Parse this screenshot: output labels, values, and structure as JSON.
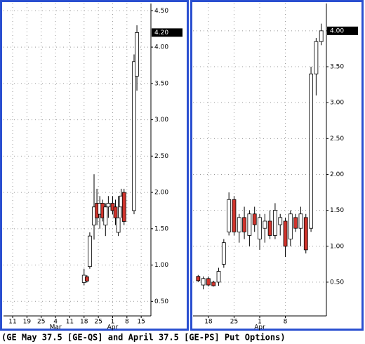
{
  "chart_data": [
    {
      "type": "candlestick",
      "x": [
        25,
        26,
        27,
        28.5,
        29.5,
        30.5,
        31.5,
        32.5,
        33.5,
        35,
        36,
        37,
        38,
        39,
        42.5,
        43.5
      ],
      "open": [
        0.76,
        0.84,
        0.98,
        1.55,
        1.85,
        1.7,
        1.85,
        1.55,
        1.8,
        1.85,
        1.8,
        1.45,
        1.8,
        2.0,
        1.75,
        3.6
      ],
      "high": [
        0.95,
        0.86,
        1.45,
        2.25,
        2.05,
        1.95,
        1.9,
        1.85,
        1.95,
        1.95,
        1.9,
        1.95,
        2.05,
        2.05,
        3.9,
        4.3
      ],
      "low": [
        0.72,
        0.76,
        0.95,
        1.35,
        1.55,
        1.5,
        1.6,
        1.4,
        1.65,
        1.7,
        1.55,
        1.4,
        1.65,
        1.55,
        1.7,
        3.4
      ],
      "close": [
        0.86,
        0.78,
        1.4,
        1.8,
        1.65,
        1.85,
        1.65,
        1.8,
        1.85,
        1.75,
        1.65,
        1.65,
        1.95,
        1.6,
        3.8,
        4.2
      ],
      "up_color": "#ffffff",
      "down_color": "#d0342c",
      "xlim": [
        -3.2,
        48.4
      ],
      "xticks": [
        {
          "value": 0,
          "label": "11"
        },
        {
          "value": 5,
          "label": "19"
        },
        {
          "value": 10,
          "label": "25"
        },
        {
          "value": 15,
          "label": "4"
        },
        {
          "value": 20,
          "label": "11"
        },
        {
          "value": 25,
          "label": "18"
        },
        {
          "value": 30,
          "label": "25"
        },
        {
          "value": 35,
          "label": "1"
        },
        {
          "value": 40,
          "label": "8"
        },
        {
          "value": 45,
          "label": "15"
        }
      ],
      "month_labels": [
        {
          "value": 15,
          "label": "Mar"
        },
        {
          "value": 35,
          "label": "Apr"
        }
      ],
      "ylim": [
        0.3,
        4.6
      ],
      "yticks": [
        {
          "value": 0.5,
          "label": "0.50"
        },
        {
          "value": 1,
          "label": "1.00"
        },
        {
          "value": 1.5,
          "label": "1.50"
        },
        {
          "value": 2,
          "label": "2.00"
        },
        {
          "value": 2.5,
          "label": "2.50"
        },
        {
          "value": 3,
          "label": "3.00"
        },
        {
          "value": 3.5,
          "label": "3.50"
        },
        {
          "value": 4,
          "label": "4.00"
        },
        {
          "value": 4.5,
          "label": "4.50"
        }
      ],
      "last_price": {
        "value": 4.2,
        "label": "4.20"
      },
      "grid": true
    },
    {
      "type": "candlestick",
      "x": [
        -2,
        -1,
        0,
        1,
        2,
        3,
        4,
        5,
        6,
        7,
        8,
        9,
        10,
        11,
        12,
        13,
        14,
        15,
        16,
        17,
        18,
        19,
        20,
        21,
        22
      ],
      "open": [
        0.58,
        0.46,
        0.55,
        0.5,
        0.5,
        0.75,
        1.2,
        1.65,
        1.2,
        1.4,
        1.15,
        1.45,
        1.1,
        1.25,
        1.35,
        1.15,
        1.3,
        1.35,
        1.1,
        1.4,
        1.25,
        1.4,
        1.25,
        3.4,
        3.85
      ],
      "high": [
        0.6,
        0.58,
        0.58,
        0.52,
        0.7,
        1.1,
        1.75,
        1.7,
        1.45,
        1.55,
        1.5,
        1.55,
        1.45,
        1.45,
        1.5,
        1.6,
        1.45,
        1.4,
        1.5,
        1.45,
        1.55,
        1.45,
        3.5,
        3.9,
        4.1
      ],
      "low": [
        0.5,
        0.4,
        0.44,
        0.44,
        0.45,
        0.7,
        1.15,
        1.15,
        1.05,
        1.1,
        1.0,
        1.2,
        0.95,
        1.05,
        1.1,
        1.1,
        1.15,
        0.85,
        1.0,
        1.2,
        1.0,
        0.9,
        1.2,
        3.1,
        3.8
      ],
      "close": [
        0.52,
        0.55,
        0.46,
        0.45,
        0.65,
        1.05,
        1.65,
        1.2,
        1.4,
        1.2,
        1.45,
        1.3,
        1.4,
        1.35,
        1.15,
        1.5,
        1.4,
        1.0,
        1.45,
        1.25,
        1.45,
        0.95,
        3.4,
        3.85,
        4.0
      ],
      "up_color": "#ffffff",
      "down_color": "#d0342c",
      "xlim": [
        -3,
        23
      ],
      "xticks": [
        {
          "value": 0,
          "label": "18"
        },
        {
          "value": 5,
          "label": "25"
        },
        {
          "value": 10,
          "label": "1"
        },
        {
          "value": 15,
          "label": "8"
        }
      ],
      "month_labels": [
        {
          "value": 10,
          "label": "Apr"
        }
      ],
      "ylim": [
        0.03,
        4.38
      ],
      "yticks": [
        {
          "value": 0.5,
          "label": "0.50"
        },
        {
          "value": 1,
          "label": "1.00"
        },
        {
          "value": 1.5,
          "label": "1.50"
        },
        {
          "value": 2,
          "label": "2.00"
        },
        {
          "value": 2.5,
          "label": "2.50"
        },
        {
          "value": 3,
          "label": "3.00"
        },
        {
          "value": 3.5,
          "label": "3.50"
        },
        {
          "value": 4,
          "label": "4.00"
        }
      ],
      "last_price": {
        "value": 4.0,
        "label": "4.00"
      },
      "grid": true
    }
  ],
  "caption": "(GE May 37.5 [GE-QS] and April 37.5 [GE-PS] Put Options)"
}
